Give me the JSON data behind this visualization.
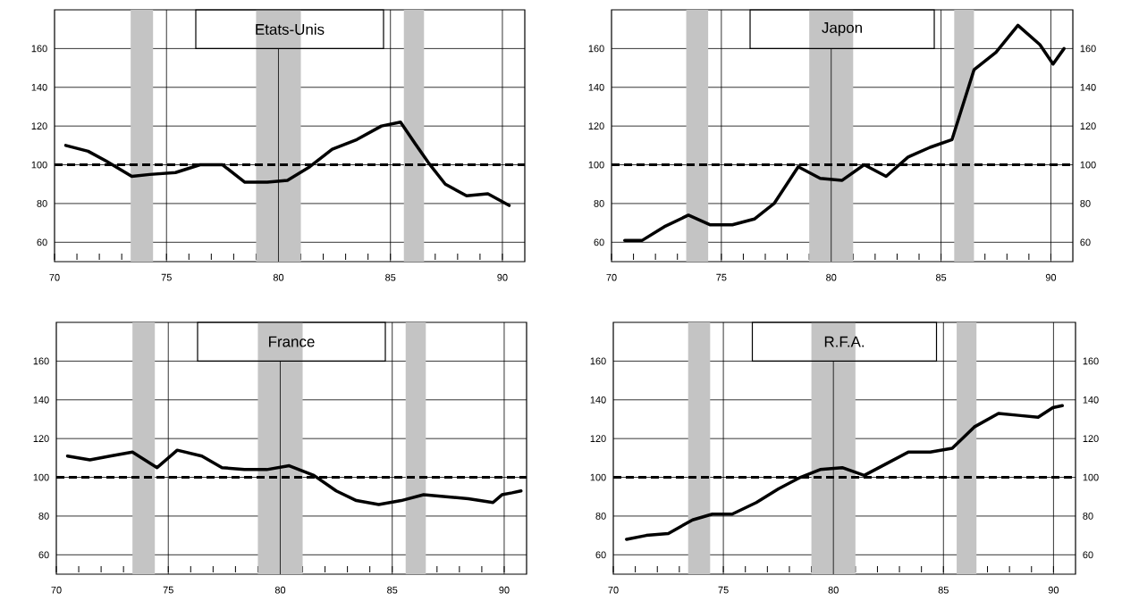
{
  "chart_data": [
    {
      "type": "line",
      "title": "Etats-Unis",
      "xlim": [
        70,
        91
      ],
      "xticks": [
        70,
        75,
        80,
        85,
        90
      ],
      "ylim": [
        50,
        180
      ],
      "yticks": [
        60,
        80,
        100,
        120,
        140,
        160
      ],
      "grid": true,
      "ref_lines": [
        {
          "axis": "y",
          "value": 100,
          "color": "#000000",
          "line_style": "dashed"
        }
      ],
      "bands": [
        {
          "axis": "x",
          "from": 73.4,
          "to": 74.4,
          "color": "#c4c4c4"
        },
        {
          "axis": "x",
          "from": 79,
          "to": 81,
          "color": "#c4c4c4"
        },
        {
          "axis": "x",
          "from": 85.6,
          "to": 86.5,
          "color": "#c4c4c4"
        }
      ],
      "series": [
        {
          "color": "#000000",
          "x": [
            70.5,
            71.5,
            72.3,
            73.45,
            74.25,
            75.4,
            76.5,
            77.5,
            78.5,
            79.5,
            80.4,
            81.4,
            82.4,
            83.5,
            84.6,
            85.45,
            86.1,
            86.7,
            87.45,
            88.4,
            89.35,
            90.3
          ],
          "values": [
            110,
            107,
            102,
            94,
            95,
            96,
            100,
            100,
            91,
            91,
            92,
            99,
            108,
            113,
            120,
            122,
            111,
            101,
            90,
            84,
            85,
            79
          ]
        }
      ]
    },
    {
      "type": "line",
      "title": "Japon",
      "xlim": [
        70,
        91
      ],
      "xticks": [
        70,
        75,
        80,
        85,
        90
      ],
      "ylim": [
        50,
        180
      ],
      "yticks": [
        60,
        80,
        100,
        120,
        140,
        160
      ],
      "y2lim": [
        50,
        180
      ],
      "y2ticks": [
        60,
        80,
        100,
        120,
        140,
        160
      ],
      "grid": true,
      "ref_lines": [
        {
          "axis": "y",
          "value": 100,
          "color": "#000000",
          "line_style": "dashed"
        }
      ],
      "bands": [
        {
          "axis": "x",
          "from": 73.4,
          "to": 74.4,
          "color": "#c4c4c4"
        },
        {
          "axis": "x",
          "from": 79,
          "to": 81,
          "color": "#c4c4c4"
        },
        {
          "axis": "x",
          "from": 85.6,
          "to": 86.5,
          "color": "#c4c4c4"
        }
      ],
      "series": [
        {
          "color": "#000000",
          "x": [
            70.6,
            71.4,
            72.4,
            73.5,
            74.5,
            75.5,
            76.5,
            77.4,
            78.5,
            79.5,
            80.5,
            81.5,
            82.5,
            83.5,
            84.5,
            85.5,
            86.5,
            87.5,
            88.5,
            89.5,
            90.1,
            90.6
          ],
          "values": [
            61,
            61,
            68,
            74,
            69,
            69,
            72,
            80,
            99,
            93,
            92,
            100,
            94,
            104,
            109,
            113,
            149,
            158,
            172,
            162,
            152,
            160
          ]
        }
      ]
    },
    {
      "type": "line",
      "title": "France",
      "xlim": [
        70,
        91
      ],
      "xticks": [
        70,
        75,
        80,
        85,
        90
      ],
      "ylim": [
        50,
        180
      ],
      "yticks": [
        60,
        80,
        100,
        120,
        140,
        160
      ],
      "grid": true,
      "ref_lines": [
        {
          "axis": "y",
          "value": 100,
          "color": "#000000",
          "line_style": "dashed"
        }
      ],
      "bands": [
        {
          "axis": "x",
          "from": 73.4,
          "to": 74.4,
          "color": "#c4c4c4"
        },
        {
          "axis": "x",
          "from": 79,
          "to": 81,
          "color": "#c4c4c4"
        },
        {
          "axis": "x",
          "from": 85.6,
          "to": 86.5,
          "color": "#c4c4c4"
        }
      ],
      "series": [
        {
          "color": "#000000",
          "x": [
            70.5,
            71.5,
            72.4,
            73.4,
            74.5,
            75.4,
            76.5,
            77.4,
            78.4,
            79.4,
            80.4,
            81.5,
            82.5,
            83.4,
            84.4,
            85.4,
            86.4,
            87.4,
            88.4,
            89.5,
            89.9,
            90.35,
            90.75
          ],
          "values": [
            111,
            109,
            111,
            113,
            105,
            114,
            111,
            105,
            104,
            104,
            106,
            101,
            93,
            88,
            86,
            88,
            91,
            90,
            89,
            87,
            91,
            92,
            93
          ]
        }
      ]
    },
    {
      "type": "line",
      "title": "R.F.A.",
      "xlim": [
        70,
        91
      ],
      "xticks": [
        70,
        75,
        80,
        85,
        90
      ],
      "ylim": [
        50,
        180
      ],
      "yticks": [
        60,
        80,
        100,
        120,
        140,
        160
      ],
      "y2lim": [
        50,
        180
      ],
      "y2ticks": [
        60,
        80,
        100,
        120,
        140,
        160
      ],
      "grid": true,
      "ref_lines": [
        {
          "axis": "y",
          "value": 100,
          "color": "#000000",
          "line_style": "dashed"
        }
      ],
      "bands": [
        {
          "axis": "x",
          "from": 73.4,
          "to": 74.4,
          "color": "#c4c4c4"
        },
        {
          "axis": "x",
          "from": 79,
          "to": 81,
          "color": "#c4c4c4"
        },
        {
          "axis": "x",
          "from": 85.6,
          "to": 86.5,
          "color": "#c4c4c4"
        }
      ],
      "series": [
        {
          "color": "#000000",
          "x": [
            70.6,
            71.5,
            72.5,
            73.6,
            74.5,
            75.4,
            76.5,
            77.5,
            78.5,
            79.4,
            80.4,
            81.4,
            82.4,
            83.4,
            84.4,
            85.4,
            86.4,
            87.5,
            88.4,
            89.3,
            89.97,
            90.4
          ],
          "values": [
            68,
            70,
            71,
            78,
            81,
            81,
            87,
            94,
            100,
            104,
            105,
            101,
            107,
            113,
            113,
            115,
            126,
            133,
            132,
            131,
            136,
            137
          ]
        }
      ]
    }
  ]
}
